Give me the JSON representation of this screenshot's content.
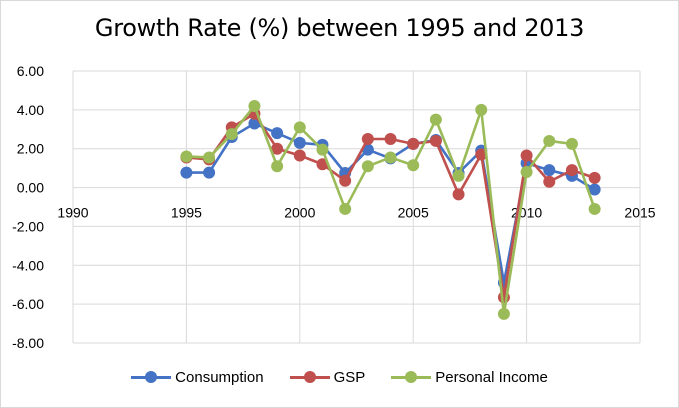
{
  "chart_data": {
    "type": "line",
    "title": "Growth Rate (%) between 1995 and 2013",
    "xlabel": "",
    "ylabel": "",
    "xlim": [
      1990,
      2015
    ],
    "ylim": [
      -8,
      6
    ],
    "x_ticks": [
      "1990",
      "1995",
      "2000",
      "2005",
      "2010",
      "2015"
    ],
    "x_tick_values": [
      1990,
      1995,
      2000,
      2005,
      2010,
      2015
    ],
    "y_ticks": [
      "6.00",
      "4.00",
      "2.00",
      "0.00",
      "-2.00",
      "-4.00",
      "-6.00",
      "-8.00"
    ],
    "y_tick_values": [
      6,
      4,
      2,
      0,
      -2,
      -4,
      -6,
      -8
    ],
    "grid": true,
    "legend_position": "bottom",
    "x": [
      1995,
      1996,
      1997,
      1998,
      1999,
      2000,
      2001,
      2002,
      2003,
      2004,
      2005,
      2006,
      2007,
      2008,
      2009,
      2010,
      2011,
      2012,
      2013
    ],
    "series": [
      {
        "name": "Consumption",
        "color": "#4472c4",
        "values": [
          0.77,
          0.77,
          2.6,
          3.3,
          2.8,
          2.3,
          2.2,
          0.75,
          1.95,
          1.5,
          2.25,
          2.45,
          0.75,
          1.9,
          -4.9,
          1.25,
          0.9,
          0.6,
          -0.1
        ]
      },
      {
        "name": "GSP",
        "color": "#c0504d",
        "values": [
          1.55,
          1.45,
          3.1,
          3.8,
          2.0,
          1.65,
          1.2,
          0.35,
          2.5,
          2.5,
          2.25,
          2.4,
          -0.35,
          1.7,
          -5.65,
          1.65,
          0.3,
          0.9,
          0.5
        ]
      },
      {
        "name": "Personal Income",
        "color": "#9bbb59",
        "values": [
          1.6,
          1.55,
          2.75,
          4.2,
          1.1,
          3.1,
          1.95,
          -1.1,
          1.1,
          1.55,
          1.15,
          3.5,
          0.6,
          4.0,
          -6.5,
          0.8,
          2.4,
          2.25,
          -1.1
        ]
      }
    ]
  }
}
